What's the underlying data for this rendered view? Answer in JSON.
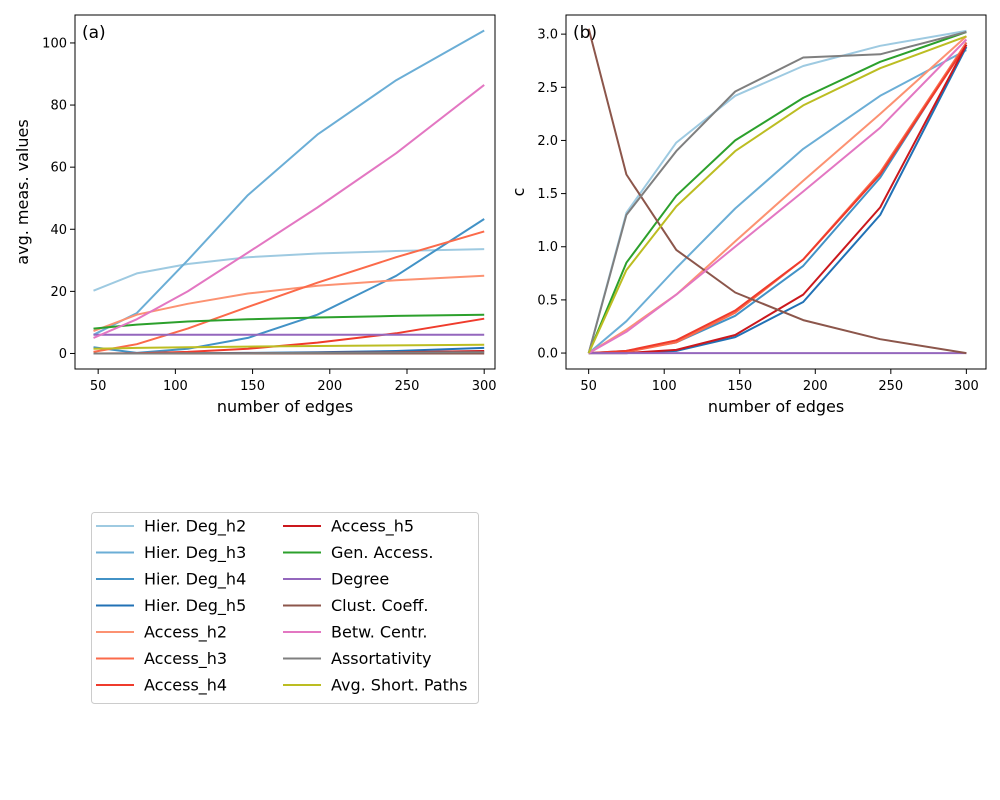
{
  "chart_data": [
    {
      "type": "line",
      "panel": "(a)",
      "xlabel": "number of edges",
      "ylabel": "avg. meas. values",
      "xlim": [
        35,
        307
      ],
      "ylim": [
        -5,
        109
      ],
      "xticks": [
        50,
        100,
        150,
        200,
        250,
        300
      ],
      "yticks": [
        0,
        20,
        40,
        60,
        80,
        100
      ],
      "x": [
        47,
        75,
        108,
        147,
        192,
        243,
        300
      ],
      "series": [
        {
          "name": "Hier. Deg_h2",
          "color": "#9ecae1",
          "values": [
            20.2,
            25.8,
            28.8,
            31.0,
            32.2,
            33.0,
            33.6
          ]
        },
        {
          "name": "Hier. Deg_h3",
          "color": "#6baed6",
          "values": [
            6.0,
            13.0,
            30.0,
            51.0,
            70.5,
            88.0,
            104.0
          ]
        },
        {
          "name": "Hier. Deg_h4",
          "color": "#4292c6",
          "values": [
            2.0,
            0.2,
            1.5,
            5.0,
            12.5,
            25.0,
            43.3
          ]
        },
        {
          "name": "Hier. Deg_h5",
          "color": "#2171b5",
          "values": [
            0.0,
            0.0,
            0.1,
            0.2,
            0.4,
            0.8,
            1.8
          ]
        },
        {
          "name": "Access_h2",
          "color": "#fc9272",
          "values": [
            7.2,
            12.5,
            16.0,
            19.3,
            21.8,
            23.6,
            25.0
          ]
        },
        {
          "name": "Access_h3",
          "color": "#fb6a4a",
          "values": [
            0.5,
            3.0,
            8.0,
            15.0,
            22.8,
            31.0,
            39.3
          ]
        },
        {
          "name": "Access_h4",
          "color": "#ef3b2c",
          "values": [
            0.0,
            0.1,
            0.5,
            1.5,
            3.5,
            6.5,
            11.2
          ]
        },
        {
          "name": "Access_h5",
          "color": "#cb181d",
          "values": [
            0.0,
            0.0,
            0.0,
            0.1,
            0.2,
            0.4,
            0.8
          ]
        },
        {
          "name": "Gen. Access.",
          "color": "#2ca02c",
          "values": [
            8.0,
            9.3,
            10.3,
            11.0,
            11.6,
            12.1,
            12.5
          ]
        },
        {
          "name": "Degree",
          "color": "#9467bd",
          "values": [
            6.0,
            6.0,
            6.0,
            6.0,
            6.0,
            6.0,
            6.0
          ]
        },
        {
          "name": "Clust. Coeff.",
          "color": "#8c564b",
          "values": [
            0.0,
            0.0,
            0.0,
            0.0,
            0.0,
            0.0,
            0.0
          ]
        },
        {
          "name": "Betw. Centr.",
          "color": "#e377c2",
          "values": [
            5.0,
            11.0,
            20.0,
            32.5,
            47.0,
            64.5,
            86.5
          ]
        },
        {
          "name": "Assortativity",
          "color": "#7f7f7f",
          "values": [
            0.0,
            0.0,
            0.05,
            0.1,
            0.2,
            0.3,
            0.4
          ]
        },
        {
          "name": "Avg. Short. Paths",
          "color": "#bcbd22",
          "values": [
            1.5,
            1.8,
            2.0,
            2.2,
            2.4,
            2.6,
            2.8
          ]
        }
      ]
    },
    {
      "type": "line",
      "panel": "(b)",
      "xlabel": "number of edges",
      "ylabel": "c",
      "xlim": [
        35,
        313
      ],
      "ylim": [
        -0.15,
        3.18
      ],
      "xticks": [
        50,
        100,
        150,
        200,
        250,
        300
      ],
      "yticks": [
        0.0,
        0.5,
        1.0,
        1.5,
        2.0,
        2.5,
        3.0
      ],
      "ytick_labels": [
        "0.0",
        "0.5",
        "1.0",
        "1.5",
        "2.0",
        "2.5",
        "3.0"
      ],
      "x": [
        50,
        75,
        108,
        147,
        192,
        243,
        300
      ],
      "series": [
        {
          "name": "Hier. Deg_h2",
          "color": "#9ecae1",
          "values": [
            0.0,
            1.32,
            1.98,
            2.42,
            2.7,
            2.89,
            3.03
          ]
        },
        {
          "name": "Hier. Deg_h3",
          "color": "#6baed6",
          "values": [
            0.0,
            0.3,
            0.8,
            1.36,
            1.92,
            2.42,
            2.85
          ]
        },
        {
          "name": "Hier. Deg_h4",
          "color": "#4292c6",
          "values": [
            0.0,
            0.02,
            0.1,
            0.35,
            0.82,
            1.65,
            2.92
          ]
        },
        {
          "name": "Hier. Deg_h5",
          "color": "#2171b5",
          "values": [
            0.0,
            0.0,
            0.02,
            0.15,
            0.48,
            1.3,
            2.88
          ]
        },
        {
          "name": "Access_h2",
          "color": "#fc9272",
          "values": [
            0.0,
            0.22,
            0.55,
            1.05,
            1.62,
            2.25,
            2.98
          ]
        },
        {
          "name": "Access_h3",
          "color": "#fb6a4a",
          "values": [
            0.0,
            0.01,
            0.1,
            0.38,
            0.88,
            1.7,
            2.92
          ]
        },
        {
          "name": "Access_h4",
          "color": "#ef3b2c",
          "values": [
            0.0,
            0.02,
            0.12,
            0.4,
            0.88,
            1.68,
            2.9
          ]
        },
        {
          "name": "Access_h5",
          "color": "#cb181d",
          "values": [
            0.0,
            0.0,
            0.03,
            0.17,
            0.55,
            1.37,
            2.9
          ]
        },
        {
          "name": "Gen. Access.",
          "color": "#2ca02c",
          "values": [
            0.0,
            0.85,
            1.48,
            2.0,
            2.4,
            2.74,
            3.02
          ]
        },
        {
          "name": "Degree",
          "color": "#9467bd",
          "values": [
            0.0,
            0.0,
            0.0,
            0.0,
            0.0,
            0.0,
            0.0
          ]
        },
        {
          "name": "Clust. Coeff.",
          "color": "#8c564b",
          "values": [
            3.05,
            1.68,
            0.97,
            0.57,
            0.31,
            0.13,
            0.0
          ]
        },
        {
          "name": "Betw. Centr.",
          "color": "#e377c2",
          "values": [
            0.0,
            0.2,
            0.55,
            1.0,
            1.52,
            2.12,
            2.95
          ]
        },
        {
          "name": "Assortativity",
          "color": "#7f7f7f",
          "values": [
            0.0,
            1.3,
            1.9,
            2.46,
            2.78,
            2.81,
            3.02
          ]
        },
        {
          "name": "Avg. Short. Paths",
          "color": "#bcbd22",
          "values": [
            0.0,
            0.78,
            1.38,
            1.9,
            2.33,
            2.68,
            2.98
          ]
        }
      ]
    }
  ]
}
